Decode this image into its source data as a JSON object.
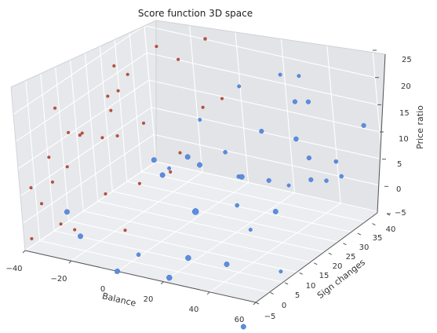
{
  "chart_data": {
    "type": "scatter",
    "title": "Score function 3D space",
    "xlabel": "Balance",
    "ylabel": "Sign changes",
    "zlabel": "Price ratio",
    "xlim": [
      -40,
      60
    ],
    "ylim": [
      -5,
      40
    ],
    "zlim": [
      -5,
      25
    ],
    "x_ticks": [
      "−40",
      "−20",
      "0",
      "20",
      "40",
      "60"
    ],
    "y_ticks": [
      "−5",
      "0",
      "5",
      "10",
      "15",
      "20",
      "25",
      "30",
      "35",
      "40"
    ],
    "z_ticks": [
      "−5",
      "0",
      "5",
      "10",
      "15",
      "20",
      "25"
    ],
    "grid": true,
    "series": [
      {
        "color": "#c0513f",
        "points": [
          {
            "x": 0,
            "y": 30,
            "z": 25,
            "s": 2
          },
          {
            "x": -15,
            "y": 25,
            "z": 24,
            "s": 1.8
          },
          {
            "x": -10,
            "y": 28,
            "z": 21,
            "s": 1.8
          },
          {
            "x": -25,
            "y": 18,
            "z": 22,
            "s": 1.8
          },
          {
            "x": -22,
            "y": 20,
            "z": 20,
            "s": 1.8
          },
          {
            "x": -20,
            "y": 15,
            "z": 19,
            "s": 1.8
          },
          {
            "x": -18,
            "y": 10,
            "z": 20,
            "s": 1.8
          },
          {
            "x": -35,
            "y": 5,
            "z": 18,
            "s": 1.8
          },
          {
            "x": -30,
            "y": 5,
            "z": 14,
            "s": 1.8
          },
          {
            "x": -28,
            "y": 8,
            "z": 13,
            "s": 1.8
          },
          {
            "x": -25,
            "y": 5,
            "z": 14,
            "s": 1.8
          },
          {
            "x": -24,
            "y": 15,
            "z": 15,
            "s": 1.8
          },
          {
            "x": -22,
            "y": 10,
            "z": 12,
            "s": 1.8
          },
          {
            "x": -18,
            "y": 12,
            "z": 12,
            "s": 1.8
          },
          {
            "x": -10,
            "y": 15,
            "z": 14,
            "s": 1.8
          },
          {
            "x": -30,
            "y": -2,
            "z": 12,
            "s": 1.8
          },
          {
            "x": -25,
            "y": 0,
            "z": 10,
            "s": 1.8
          },
          {
            "x": -28,
            "y": -3,
            "z": 8,
            "s": 1.8
          },
          {
            "x": -35,
            "y": -5,
            "z": 7,
            "s": 1.8
          },
          {
            "x": -35,
            "y": -2,
            "z": 3,
            "s": 1.8
          },
          {
            "x": -30,
            "y": 0,
            "z": -1,
            "s": 1.8
          },
          {
            "x": -38,
            "y": -4,
            "z": -3,
            "s": 1.8
          },
          {
            "x": -20,
            "y": -3,
            "z": 0,
            "s": 1.8
          },
          {
            "x": -10,
            "y": 12,
            "z": 4,
            "s": 1.8
          },
          {
            "x": 0,
            "y": 15,
            "z": 6,
            "s": 1.8
          },
          {
            "x": 5,
            "y": 15,
            "z": 10,
            "s": 1.8
          },
          {
            "x": 10,
            "y": 20,
            "z": 17,
            "s": 1.8
          },
          {
            "x": 12,
            "y": 25,
            "z": 17,
            "s": 1.8
          },
          {
            "x": -5,
            "y": -3,
            "z": 8,
            "s": 1.8
          },
          {
            "x": 5,
            "y": -5,
            "z": 3,
            "s": 1.8
          }
        ]
      },
      {
        "color": "#5b8de0",
        "points": [
          {
            "x": 40,
            "y": 30,
            "z": 22,
            "s": 2.2
          },
          {
            "x": 25,
            "y": 35,
            "z": 19,
            "s": 2.2
          },
          {
            "x": 20,
            "y": 25,
            "z": 20,
            "s": 2.2
          },
          {
            "x": 40,
            "y": 28,
            "z": 18,
            "s": 2.8
          },
          {
            "x": 50,
            "y": 25,
            "z": 20,
            "s": 2.8
          },
          {
            "x": 15,
            "y": 15,
            "z": 17,
            "s": 2.2
          },
          {
            "x": 35,
            "y": 20,
            "z": 15,
            "s": 2.8
          },
          {
            "x": 50,
            "y": 20,
            "z": 15,
            "s": 3
          },
          {
            "x": 55,
            "y": 20,
            "z": 12,
            "s": 2.8
          },
          {
            "x": 0,
            "y": 10,
            "z": 10,
            "s": 3.2
          },
          {
            "x": 10,
            "y": 5,
            "z": 10,
            "s": 3.2
          },
          {
            "x": 15,
            "y": 10,
            "z": 12,
            "s": 3.2
          },
          {
            "x": 20,
            "y": 10,
            "z": 11,
            "s": 3.2
          },
          {
            "x": 25,
            "y": 15,
            "z": 12,
            "s": 2.5
          },
          {
            "x": 30,
            "y": 15,
            "z": 8,
            "s": 2.5
          },
          {
            "x": 45,
            "y": 5,
            "z": 13,
            "s": 3.2
          },
          {
            "x": 50,
            "y": 10,
            "z": 11,
            "s": 2.8
          },
          {
            "x": 55,
            "y": 20,
            "z": 8,
            "s": 2.8
          },
          {
            "x": 60,
            "y": 25,
            "z": 10,
            "s": 2.5
          },
          {
            "x": 60,
            "y": 35,
            "z": 13,
            "s": 2.8
          },
          {
            "x": 55,
            "y": 30,
            "z": 5,
            "s": 2.5
          },
          {
            "x": 55,
            "y": 25,
            "z": 6,
            "s": 2.5
          },
          {
            "x": 30,
            "y": 0,
            "z": 7,
            "s": 4
          },
          {
            "x": 35,
            "y": 10,
            "z": 5,
            "s": 2.5
          },
          {
            "x": 45,
            "y": 15,
            "z": 3,
            "s": 3.2
          },
          {
            "x": -20,
            "y": -5,
            "z": 4,
            "s": 3.2
          },
          {
            "x": -15,
            "y": -5,
            "z": 0,
            "s": 3.2
          },
          {
            "x": 0,
            "y": -5,
            "z": -5,
            "s": 3.2
          },
          {
            "x": 10,
            "y": -5,
            "z": -1,
            "s": 2.5
          },
          {
            "x": 20,
            "y": -3,
            "z": -5,
            "s": 3.5
          },
          {
            "x": 25,
            "y": 0,
            "z": -2,
            "s": 3.5
          },
          {
            "x": 35,
            "y": 5,
            "z": -4,
            "s": 3.2
          },
          {
            "x": 40,
            "y": 10,
            "z": 1,
            "s": 2.2
          },
          {
            "x": 20,
            "y": 0,
            "z": 14,
            "s": 2.2
          },
          {
            "x": 45,
            "y": 15,
            "z": -8,
            "s": 2.2
          },
          {
            "x": 40,
            "y": 5,
            "z": -15,
            "s": 3.2
          },
          {
            "x": 45,
            "y": 20,
            "z": 6,
            "s": 2.2
          }
        ]
      }
    ]
  }
}
